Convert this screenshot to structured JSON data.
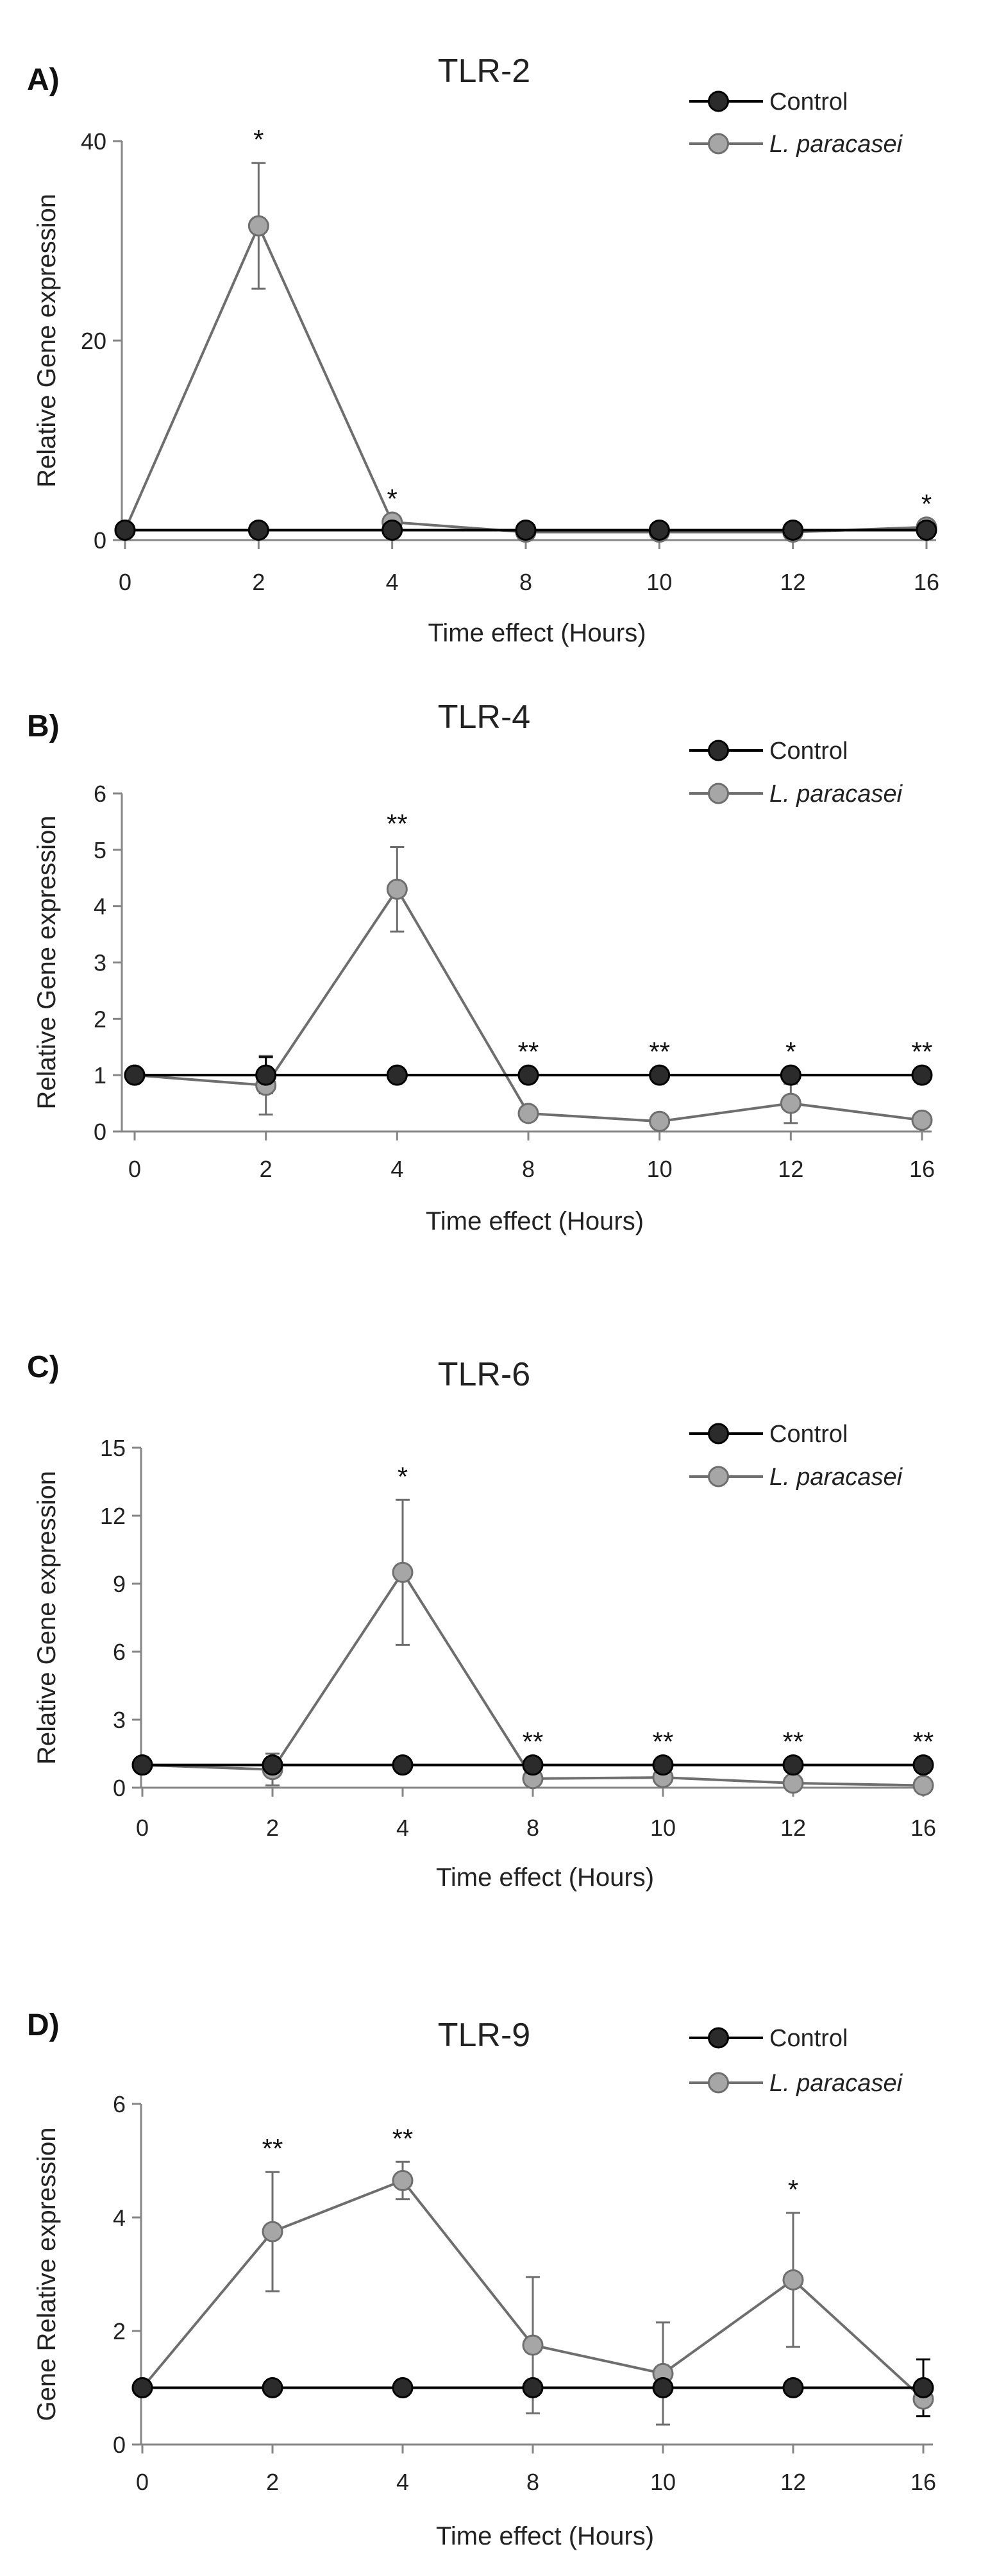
{
  "chart_data": [
    {
      "type": "line",
      "panel": "A)",
      "title": "TLR-2",
      "xlabel": "Time effect (Hours)",
      "ylabel": "Relative Gene expression",
      "categories": [
        "0",
        "2",
        "4",
        "8",
        "10",
        "12",
        "16"
      ],
      "ylim": [
        0,
        40
      ],
      "yticks": [
        "0",
        "20",
        "40"
      ],
      "series": [
        {
          "name": "Control",
          "values": [
            1,
            1,
            1,
            1,
            1,
            1,
            1
          ],
          "errors": [
            0,
            0,
            0,
            0,
            0,
            0,
            0
          ]
        },
        {
          "name": "L. paracasei",
          "values": [
            1,
            31.5,
            1.8,
            0.8,
            0.8,
            0.8,
            1.3
          ],
          "errors": [
            0,
            6.3,
            0,
            0,
            0,
            0,
            0
          ]
        }
      ],
      "significance": [
        {
          "x": "2",
          "label": "*"
        },
        {
          "x": "4",
          "label": "*"
        },
        {
          "x": "16",
          "label": "*"
        }
      ]
    },
    {
      "type": "line",
      "panel": "B)",
      "title": "TLR-4",
      "xlabel": "Time effect (Hours)",
      "ylabel": "Relative Gene expression",
      "categories": [
        "0",
        "2",
        "4",
        "8",
        "10",
        "12",
        "16"
      ],
      "ylim": [
        0,
        6
      ],
      "yticks": [
        "0",
        "1",
        "2",
        "3",
        "4",
        "5",
        "6"
      ],
      "series": [
        {
          "name": "Control",
          "values": [
            1,
            1,
            1,
            1,
            1,
            1,
            1
          ],
          "errors": [
            0,
            0.32,
            0,
            0,
            0,
            0,
            0
          ]
        },
        {
          "name": "L. paracasei",
          "values": [
            1,
            0.82,
            4.3,
            0.32,
            0.18,
            0.5,
            0.2
          ],
          "errors": [
            0,
            0.52,
            0.75,
            0,
            0,
            0.35,
            0
          ]
        }
      ],
      "significance": [
        {
          "x": "4",
          "label": "**"
        },
        {
          "x": "8",
          "label": "**"
        },
        {
          "x": "10",
          "label": "**"
        },
        {
          "x": "12",
          "label": "*"
        },
        {
          "x": "16",
          "label": "**"
        }
      ]
    },
    {
      "type": "line",
      "panel": "C)",
      "title": "TLR-6",
      "xlabel": "Time effect (Hours)",
      "ylabel": "Relative Gene expression",
      "categories": [
        "0",
        "2",
        "4",
        "8",
        "10",
        "12",
        "16"
      ],
      "ylim": [
        0,
        15
      ],
      "yticks": [
        "0",
        "3",
        "6",
        "9",
        "12",
        "15"
      ],
      "series": [
        {
          "name": "Control",
          "values": [
            1,
            1,
            1,
            1,
            1,
            1,
            1
          ],
          "errors": [
            0,
            0,
            0,
            0,
            0,
            0,
            0
          ]
        },
        {
          "name": "L. paracasei",
          "values": [
            1,
            0.8,
            9.5,
            0.4,
            0.45,
            0.2,
            0.1
          ],
          "errors": [
            0,
            0.7,
            3.2,
            0,
            0,
            0,
            0
          ]
        }
      ],
      "significance": [
        {
          "x": "4",
          "label": "*"
        },
        {
          "x": "8",
          "label": "**"
        },
        {
          "x": "10",
          "label": "**"
        },
        {
          "x": "12",
          "label": "**"
        },
        {
          "x": "16",
          "label": "**"
        }
      ]
    },
    {
      "type": "line",
      "panel": "D)",
      "title": "TLR-9",
      "xlabel": "Time effect (Hours)",
      "ylabel": "Gene Relative expression",
      "categories": [
        "0",
        "2",
        "4",
        "8",
        "10",
        "12",
        "16"
      ],
      "ylim": [
        0,
        6
      ],
      "yticks": [
        "0",
        "2",
        "4",
        "6"
      ],
      "series": [
        {
          "name": "Control",
          "values": [
            1,
            1,
            1,
            1,
            1,
            1,
            1
          ],
          "errors": [
            0,
            0,
            0,
            0,
            0,
            0,
            0.5
          ]
        },
        {
          "name": "L. paracasei",
          "values": [
            1,
            3.75,
            4.65,
            1.75,
            1.25,
            2.9,
            0.8
          ],
          "errors": [
            0,
            1.05,
            0.33,
            1.2,
            0.9,
            1.18,
            0
          ]
        }
      ],
      "significance": [
        {
          "x": "2",
          "label": "**"
        },
        {
          "x": "4",
          "label": "**"
        },
        {
          "x": "12",
          "label": "*"
        }
      ]
    }
  ],
  "colors": {
    "control_fill": "#2b2b2b",
    "paracasei_fill": "#a6a6a6",
    "control_line": "#000000",
    "paracasei_line": "#6e6e6e",
    "axis": "#868686"
  }
}
